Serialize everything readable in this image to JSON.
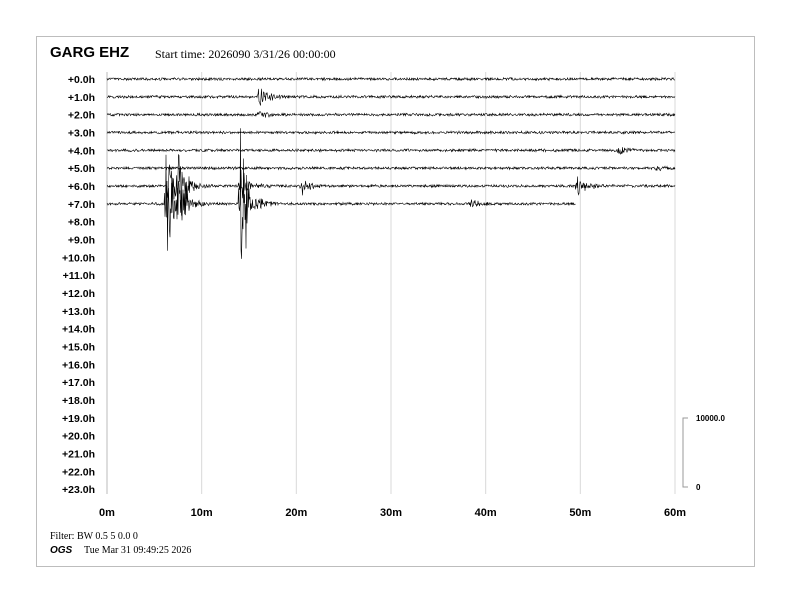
{
  "header": {
    "station": "GARG EHZ",
    "start_time": "Start time: 2026090  3/31/26 00:00:00"
  },
  "footer": {
    "filter": "Filter: BW 0.5 5 0.0 0",
    "org": "OGS",
    "timestamp": "Tue Mar 31 09:49:25 2026"
  },
  "chart_data": {
    "type": "line",
    "title": "GARG EHZ",
    "xlabel": "",
    "ylabel": "",
    "x_ticks": [
      "0m",
      "10m",
      "20m",
      "30m",
      "40m",
      "50m",
      "60m"
    ],
    "xlim": [
      0,
      60
    ],
    "row_labels": [
      "+0.0h",
      "+1.0h",
      "+2.0h",
      "+3.0h",
      "+4.0h",
      "+5.0h",
      "+6.0h",
      "+7.0h",
      "+8.0h",
      "+9.0h",
      "+10.0h",
      "+11.0h",
      "+12.0h",
      "+13.0h",
      "+14.0h",
      "+15.0h",
      "+16.0h",
      "+17.0h",
      "+18.0h",
      "+19.0h",
      "+20.0h",
      "+21.0h",
      "+22.0h",
      "+23.0h"
    ],
    "grid": true,
    "trace_color": "#000000",
    "grid_color": "#d9d9d9",
    "rows_with_data": [
      {
        "row": 0,
        "end_minute": 60,
        "events": []
      },
      {
        "row": 1,
        "end_minute": 60,
        "events": [
          {
            "minute": 16,
            "amp": 0.9
          }
        ]
      },
      {
        "row": 2,
        "end_minute": 60,
        "events": [
          {
            "minute": 16,
            "amp": 0.3
          }
        ]
      },
      {
        "row": 3,
        "end_minute": 60,
        "events": []
      },
      {
        "row": 4,
        "end_minute": 60,
        "events": [
          {
            "minute": 54,
            "amp": 0.3
          }
        ]
      },
      {
        "row": 5,
        "end_minute": 60,
        "events": [
          {
            "minute": 58,
            "amp": 0.15
          }
        ]
      },
      {
        "row": 6,
        "end_minute": 60,
        "events": [
          {
            "minute": 6.5,
            "amp": 2.6
          },
          {
            "minute": 7.5,
            "amp": 1.8
          },
          {
            "minute": 14,
            "amp": 1.2
          },
          {
            "minute": 20.5,
            "amp": 0.5
          },
          {
            "minute": 49.6,
            "amp": 0.8
          }
        ]
      },
      {
        "row": 7,
        "end_minute": 49.5,
        "events": [
          {
            "minute": 6.2,
            "amp": 3.7
          },
          {
            "minute": 7.4,
            "amp": 2.0
          },
          {
            "minute": 14,
            "amp": 5.3
          },
          {
            "minute": 38.5,
            "amp": 0.3
          }
        ]
      }
    ],
    "scale_bar": {
      "top_label": "10000.0",
      "bottom_label": "0"
    }
  }
}
